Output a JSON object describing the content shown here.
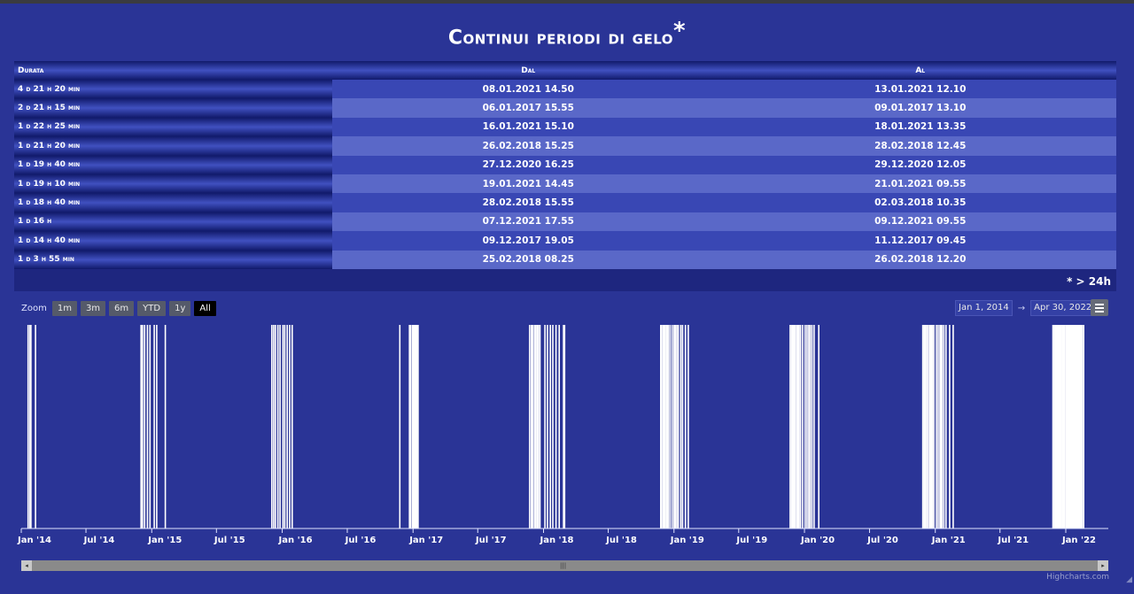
{
  "title": "Continui periodi di gelo",
  "title_mark": "*",
  "table": {
    "headers": [
      "Durata",
      "Dal",
      "Al"
    ],
    "rows": [
      [
        "4 d 21 h 20 min",
        "08.01.2021 14.50",
        "13.01.2021 12.10"
      ],
      [
        "2 d 21 h 15 min",
        "06.01.2017 15.55",
        "09.01.2017 13.10"
      ],
      [
        "1 d 22 h 25 min",
        "16.01.2021 15.10",
        "18.01.2021 13.35"
      ],
      [
        "1 d 21 h 20 min",
        "26.02.2018 15.25",
        "28.02.2018 12.45"
      ],
      [
        "1 d 19 h 40 min",
        "27.12.2020 16.25",
        "29.12.2020 12.05"
      ],
      [
        "1 d 19 h 10 min",
        "19.01.2021 14.45",
        "21.01.2021 09.55"
      ],
      [
        "1 d 18 h 40 min",
        "28.02.2018 15.55",
        "02.03.2018 10.35"
      ],
      [
        "1 d 16 h",
        "07.12.2021 17.55",
        "09.12.2021 09.55"
      ],
      [
        "1 d 14 h 40 min",
        "09.12.2017 19.05",
        "11.12.2017 09.45"
      ],
      [
        "1 d 3 h 55 min",
        "25.02.2018 08.25",
        "26.02.2018 12.20"
      ]
    ],
    "footnote": "* > 24h"
  },
  "toolbar": {
    "zoom_label": "Zoom",
    "zoom_buttons": [
      "1m",
      "3m",
      "6m",
      "YTD",
      "1y",
      "All"
    ],
    "active_zoom": "All",
    "range_from": "Jan 1, 2014",
    "range_arrow": "→",
    "range_to": "Apr 30, 2022"
  },
  "credits": "Highcharts.com",
  "chart_data": {
    "type": "bar",
    "x_range": [
      "2014-01-01",
      "2022-04-30"
    ],
    "tick_labels": [
      "Jan '14",
      "Jul '14",
      "Jan '15",
      "Jul '15",
      "Jan '16",
      "Jul '16",
      "Jan '17",
      "Jul '17",
      "Jan '18",
      "Jul '18",
      "Jan '19",
      "Jul '19",
      "Jan '20",
      "Jul '20",
      "Jan '21",
      "Jul '21",
      "Jan '22"
    ],
    "tick_dates": [
      "2014-01-01",
      "2014-07-01",
      "2015-01-01",
      "2015-07-01",
      "2016-01-01",
      "2016-07-01",
      "2017-01-01",
      "2017-07-01",
      "2018-01-01",
      "2018-07-01",
      "2019-01-01",
      "2019-07-01",
      "2020-01-01",
      "2020-07-01",
      "2021-01-01",
      "2021-07-01",
      "2022-01-01"
    ],
    "frost_days": [
      "2014-01-20",
      "2014-01-25",
      "2014-01-28",
      "2014-02-10",
      "2014-12-02",
      "2014-12-06",
      "2014-12-12",
      "2014-12-20",
      "2014-12-27",
      "2015-01-08",
      "2015-01-15",
      "2015-02-08",
      "2015-12-03",
      "2015-12-08",
      "2015-12-13",
      "2015-12-20",
      "2015-12-26",
      "2016-01-03",
      "2016-01-08",
      "2016-01-15",
      "2016-01-22",
      "2016-01-29",
      "2016-11-25",
      "2016-12-22",
      "2016-12-26",
      "2016-12-31",
      "2017-01-03",
      "2017-01-06",
      "2017-01-09",
      "2017-01-12",
      "2017-01-15",
      "2017-11-23",
      "2017-11-28",
      "2017-12-02",
      "2017-12-07",
      "2017-12-10",
      "2017-12-14",
      "2017-12-18",
      "2017-12-22",
      "2018-01-05",
      "2018-01-12",
      "2018-01-20",
      "2018-01-27",
      "2018-02-05",
      "2018-02-14",
      "2018-02-26",
      "2018-03-01",
      "2018-11-25",
      "2018-11-28",
      "2018-12-02",
      "2018-12-05",
      "2018-12-08",
      "2018-12-12",
      "2018-12-16",
      "2018-12-21",
      "2018-12-27",
      "2019-01-01",
      "2019-01-05",
      "2019-01-09",
      "2019-01-13",
      "2019-01-20",
      "2019-01-25",
      "2019-02-02",
      "2019-02-10",
      "2019-11-22",
      "2019-11-26",
      "2019-11-29",
      "2019-12-03",
      "2019-12-06",
      "2019-12-10",
      "2019-12-14",
      "2019-12-17",
      "2019-12-21",
      "2019-12-27",
      "2020-01-03",
      "2020-01-08",
      "2020-01-13",
      "2020-01-17",
      "2020-01-22",
      "2020-01-28",
      "2020-02-10",
      "2020-11-27",
      "2020-12-01",
      "2020-12-05",
      "2020-12-09",
      "2020-12-13",
      "2020-12-17",
      "2020-12-21",
      "2020-12-24",
      "2020-12-28",
      "2021-01-04",
      "2021-01-09",
      "2021-01-14",
      "2021-01-17",
      "2021-01-20",
      "2021-01-25",
      "2021-01-31",
      "2021-02-10",
      "2021-02-20",
      "2021-11-26",
      "2021-11-29",
      "2021-12-02",
      "2021-12-05",
      "2021-12-08",
      "2021-12-11",
      "2021-12-14",
      "2021-12-17",
      "2021-12-20",
      "2021-12-23",
      "2021-12-26",
      "2021-12-29",
      "2022-01-02",
      "2022-01-05",
      "2022-01-08",
      "2022-01-11",
      "2022-01-14",
      "2022-01-17",
      "2022-01-20",
      "2022-01-23",
      "2022-01-26",
      "2022-01-29",
      "2022-02-01",
      "2022-02-04",
      "2022-02-07",
      "2022-02-10",
      "2022-02-13",
      "2022-02-16",
      "2022-02-20"
    ],
    "bar_color": "#ffffff",
    "axis_color": "#dfe3ff"
  }
}
